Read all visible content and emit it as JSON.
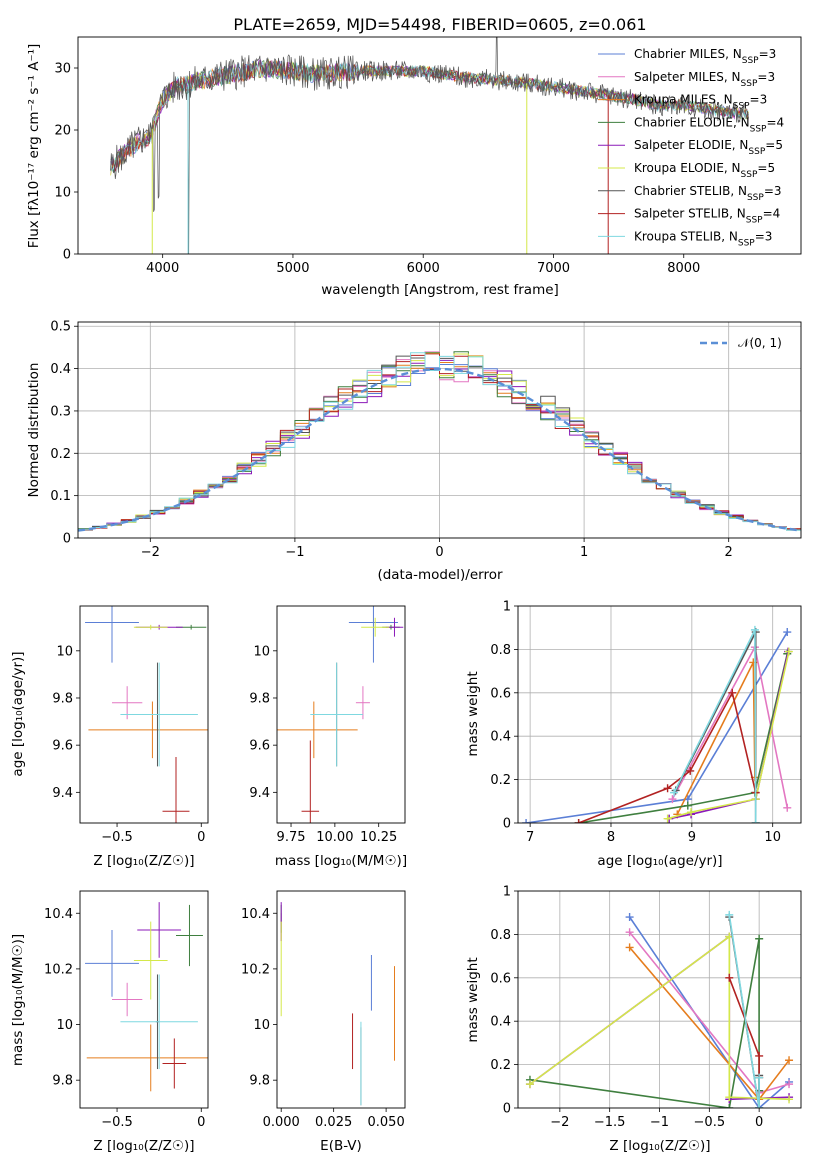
{
  "colors": {
    "Chabrier MILES": "#5b7fd6",
    "Salpeter MILES": "#e377c2",
    "Kroupa MILES": "#e57d1e",
    "Chabrier ELODIE": "#3f7f3f",
    "Salpeter ELODIE": "#8b1ab8",
    "Kroupa ELODIE": "#d4e84a",
    "Chabrier STELIB": "#555555",
    "Salpeter STELIB": "#b22222",
    "Kroupa STELIB": "#7fd8e0",
    "normal": "#5b8fd6"
  },
  "chart_data": [
    {
      "id": "spectrum",
      "type": "line",
      "title": "PLATE=2659, MJD=54498, FIBERID=0605, z=0.061",
      "xlabel": "wavelength [Angstrom, rest frame]",
      "ylabel": "Flux [fλ10⁻¹⁷ erg cm⁻² s⁻¹ A⁻¹]",
      "xlim": [
        3350,
        8900
      ],
      "ylim": [
        0,
        35
      ],
      "xticks": [
        4000,
        5000,
        6000,
        7000,
        8000
      ],
      "yticks": [
        0,
        10,
        20,
        30
      ],
      "legend_position": "top-right",
      "series": [
        {
          "name": "Chabrier MILES, N_SSP=3",
          "base": "Chabrier MILES",
          "nssp": "3"
        },
        {
          "name": "Salpeter MILES, N_SSP=3",
          "base": "Salpeter MILES",
          "nssp": "3"
        },
        {
          "name": "Kroupa MILES, N_SSP=3",
          "base": "Kroupa MILES",
          "nssp": "3"
        },
        {
          "name": "Chabrier ELODIE, N_SSP=4",
          "base": "Chabrier ELODIE",
          "nssp": "4"
        },
        {
          "name": "Salpeter ELODIE, N_SSP=5",
          "base": "Salpeter ELODIE",
          "nssp": "5"
        },
        {
          "name": "Kroupa ELODIE, N_SSP=5",
          "base": "Kroupa ELODIE",
          "nssp": "5"
        },
        {
          "name": "Chabrier STELIB, N_SSP=3",
          "base": "Chabrier STELIB",
          "nssp": "3"
        },
        {
          "name": "Salpeter STELIB, N_SSP=4",
          "base": "Salpeter STELIB",
          "nssp": "4"
        },
        {
          "name": "Kroupa STELIB, N_SSP=3",
          "base": "Kroupa STELIB",
          "nssp": "3"
        }
      ],
      "continuum": [
        [
          3600,
          14
        ],
        [
          3700,
          16
        ],
        [
          3800,
          18
        ],
        [
          3900,
          19
        ],
        [
          4000,
          25
        ],
        [
          4100,
          27
        ],
        [
          4300,
          28
        ],
        [
          4500,
          29
        ],
        [
          4800,
          30
        ],
        [
          5000,
          29.5
        ],
        [
          5200,
          29
        ],
        [
          5500,
          29.5
        ],
        [
          6000,
          29.5
        ],
        [
          6300,
          28.5
        ],
        [
          6600,
          28
        ],
        [
          7000,
          27
        ],
        [
          7300,
          26
        ],
        [
          7600,
          25
        ],
        [
          7800,
          24
        ],
        [
          8000,
          24
        ],
        [
          8300,
          23
        ],
        [
          8500,
          22.5
        ]
      ]
    },
    {
      "id": "residuals",
      "type": "area",
      "xlabel": "(data-model)/error",
      "ylabel": "Normed distribution",
      "xlim": [
        -2.5,
        2.5
      ],
      "ylim": [
        0,
        0.51
      ],
      "xticks": [
        -2,
        -1,
        0,
        1,
        2
      ],
      "yticks": [
        0.0,
        0.1,
        0.2,
        0.3,
        0.4,
        0.5
      ],
      "legend": "𝒩(0, 1)",
      "legend_position": "top-right",
      "bin_width": 0.1,
      "grid": true
    },
    {
      "id": "age-vs-Z",
      "type": "scatter",
      "xlabel": "Z [log₁₀(Z/Z☉)]",
      "ylabel": "age  [log₁₀(age/yr)]",
      "xlim": [
        -0.72,
        0.04
      ],
      "ylim": [
        9.27,
        10.19
      ],
      "xticks": [
        -0.5,
        0.0
      ],
      "yticks": [
        9.4,
        9.6,
        9.8,
        10.0
      ],
      "points": [
        {
          "series": "Chabrier MILES",
          "x": -0.53,
          "xerr": 0.16,
          "y": 10.12,
          "yerr": 0.17
        },
        {
          "series": "Salpeter MILES",
          "x": -0.44,
          "xerr": 0.09,
          "y": 9.78,
          "yerr": 0.07
        },
        {
          "series": "Kroupa MILES",
          "x": -0.29,
          "xerr": 0.38,
          "y": 9.665,
          "yerr": 0.12
        },
        {
          "series": "Chabrier ELODIE",
          "x": -0.06,
          "xerr": 0.09,
          "y": 10.1,
          "yerr": 0.01
        },
        {
          "series": "Salpeter ELODIE",
          "x": -0.25,
          "xerr": 0.14,
          "y": 10.1,
          "yerr": 0.01
        },
        {
          "series": "Kroupa ELODIE",
          "x": -0.3,
          "xerr": 0.1,
          "y": 10.1,
          "yerr": 0.01
        },
        {
          "series": "Chabrier STELIB",
          "x": -0.26,
          "xerr": 0.01,
          "y": 9.73,
          "yerr": 0.22
        },
        {
          "series": "Salpeter STELIB",
          "x": -0.15,
          "xerr": 0.08,
          "y": 9.32,
          "yerr": 0.23
        },
        {
          "series": "Kroupa STELIB",
          "x": -0.25,
          "xerr": 0.23,
          "y": 9.73,
          "yerr": 0.22
        }
      ]
    },
    {
      "id": "age-vs-mass",
      "type": "scatter",
      "xlabel": "mass [log₁₀(M/M☉)]",
      "ylabel": "",
      "xlim": [
        9.67,
        10.4
      ],
      "ylim": [
        9.27,
        10.19
      ],
      "xticks": [
        9.75,
        10.0,
        10.25
      ],
      "xticklabels": [
        "9.75",
        "10.00",
        "10.25"
      ],
      "yticks": [
        9.4,
        9.6,
        9.8,
        10.0
      ],
      "points": [
        {
          "series": "Chabrier MILES",
          "x": 10.22,
          "xerr": 0.14,
          "y": 10.12,
          "yerr": 0.17
        },
        {
          "series": "Salpeter MILES",
          "x": 10.16,
          "xerr": 0.04,
          "y": 9.78,
          "yerr": 0.07
        },
        {
          "series": "Kroupa MILES",
          "x": 9.88,
          "xerr": 0.25,
          "y": 9.665,
          "yerr": 0.12
        },
        {
          "series": "Chabrier ELODIE",
          "x": 10.32,
          "xerr": 0.05,
          "y": 10.1,
          "yerr": 0.01
        },
        {
          "series": "Salpeter ELODIE",
          "x": 10.34,
          "xerr": 0.05,
          "y": 10.1,
          "yerr": 0.04
        },
        {
          "series": "Kroupa ELODIE",
          "x": 10.23,
          "xerr": 0.08,
          "y": 10.1,
          "yerr": 0.04
        },
        {
          "series": "Chabrier STELIB",
          "x": 10.01,
          "xerr": 0.03,
          "y": 9.73,
          "yerr": 0.22
        },
        {
          "series": "Salpeter STELIB",
          "x": 9.86,
          "xerr": 0.05,
          "y": 9.32,
          "yerr": 0.3
        },
        {
          "series": "Kroupa STELIB",
          "x": 10.01,
          "xerr": 0.15,
          "y": 9.73,
          "yerr": 0.22
        }
      ]
    },
    {
      "id": "mass-weight-vs-age",
      "type": "line",
      "xlabel": "age  [log₁₀(age/yr)]",
      "ylabel": "mass weight",
      "xlim": [
        6.85,
        10.35
      ],
      "ylim": [
        0,
        1.0
      ],
      "xticks": [
        7,
        8,
        9,
        10
      ],
      "yticks": [
        0.0,
        0.2,
        0.4,
        0.6,
        0.8,
        1.0
      ],
      "grid": true,
      "series": [
        {
          "name": "Chabrier MILES",
          "points": [
            [
              6.95,
              0.0
            ],
            [
              8.95,
              0.11
            ],
            [
              10.18,
              0.88
            ]
          ]
        },
        {
          "name": "Salpeter MILES",
          "points": [
            [
              8.76,
              0.11
            ],
            [
              9.78,
              0.81
            ],
            [
              10.18,
              0.07
            ]
          ]
        },
        {
          "name": "Kroupa MILES",
          "points": [
            [
              8.82,
              0.04
            ],
            [
              9.76,
              0.74
            ],
            [
              9.78,
              0.21
            ]
          ]
        },
        {
          "name": "Chabrier ELODIE",
          "points": [
            [
              7.6,
              0.0
            ],
            [
              8.95,
              0.08
            ],
            [
              9.78,
              0.14
            ],
            [
              10.18,
              0.78
            ]
          ]
        },
        {
          "name": "Salpeter ELODIE",
          "points": [
            [
              8.72,
              0.02
            ],
            [
              8.99,
              0.04
            ],
            [
              9.79,
              0.11
            ],
            [
              10.19,
              0.79
            ]
          ]
        },
        {
          "name": "Kroupa ELODIE",
          "points": [
            [
              8.7,
              0.02
            ],
            [
              8.99,
              0.05
            ],
            [
              9.79,
              0.11
            ],
            [
              10.2,
              0.79
            ]
          ]
        },
        {
          "name": "Chabrier STELIB",
          "points": [
            [
              8.8,
              0.15
            ],
            [
              9.79,
              0.88
            ],
            [
              9.79,
              0.0
            ]
          ]
        },
        {
          "name": "Salpeter STELIB",
          "points": [
            [
              7.6,
              0.0
            ],
            [
              8.7,
              0.16
            ],
            [
              8.98,
              0.24
            ],
            [
              9.5,
              0.6
            ],
            [
              9.79,
              0.14
            ]
          ]
        },
        {
          "name": "Kroupa STELIB",
          "points": [
            [
              8.78,
              0.14
            ],
            [
              9.78,
              0.89
            ],
            [
              9.79,
              0.0
            ]
          ]
        }
      ]
    },
    {
      "id": "mass-vs-Z",
      "type": "scatter",
      "xlabel": "Z [log₁₀(Z/Z☉)]",
      "ylabel": "mass [log₁₀(M/M☉)]",
      "xlim": [
        -0.72,
        0.04
      ],
      "ylim": [
        9.7,
        10.48
      ],
      "xticks": [
        -0.5,
        0.0
      ],
      "yticks": [
        9.8,
        10.0,
        10.2,
        10.4
      ],
      "points": [
        {
          "series": "Chabrier MILES",
          "x": -0.53,
          "xerr": 0.16,
          "y": 10.22,
          "yerr": 0.12
        },
        {
          "series": "Salpeter MILES",
          "x": -0.44,
          "xerr": 0.09,
          "y": 10.09,
          "yerr": 0.06
        },
        {
          "series": "Kroupa MILES",
          "x": -0.3,
          "xerr": 0.38,
          "y": 9.88,
          "yerr": 0.12
        },
        {
          "series": "Chabrier ELODIE",
          "x": -0.07,
          "xerr": 0.08,
          "y": 10.32,
          "yerr": 0.11
        },
        {
          "series": "Salpeter ELODIE",
          "x": -0.25,
          "xerr": 0.13,
          "y": 10.34,
          "yerr": 0.1
        },
        {
          "series": "Kroupa ELODIE",
          "x": -0.3,
          "xerr": 0.1,
          "y": 10.23,
          "yerr": 0.14
        },
        {
          "series": "Chabrier STELIB",
          "x": -0.26,
          "xerr": 0.01,
          "y": 10.01,
          "yerr": 0.17
        },
        {
          "series": "Salpeter STELIB",
          "x": -0.16,
          "xerr": 0.07,
          "y": 9.86,
          "yerr": 0.09
        },
        {
          "series": "Kroupa STELIB",
          "x": -0.25,
          "xerr": 0.23,
          "y": 10.01,
          "yerr": 0.17
        }
      ]
    },
    {
      "id": "mass-vs-ebv",
      "type": "scatter",
      "xlabel": "E(B-V)",
      "ylabel": "",
      "xlim": [
        -0.002,
        0.059
      ],
      "ylim": [
        9.7,
        10.48
      ],
      "xticks": [
        0.0,
        0.025,
        0.05
      ],
      "xticklabels": [
        "0.000",
        "0.025",
        "0.050"
      ],
      "yticks": [
        9.8,
        10.0,
        10.2,
        10.4
      ],
      "points": [
        {
          "series": "Chabrier MILES",
          "x": 0.043,
          "y": 10.15,
          "yerr": 0.1
        },
        {
          "series": "Salpeter MILES",
          "x": 0.0,
          "y": 10.35,
          "yerr": 0.05
        },
        {
          "series": "Kroupa MILES",
          "x": 0.054,
          "y": 10.04,
          "yerr": 0.17
        },
        {
          "series": "Chabrier ELODIE",
          "x": 0.0,
          "y": 10.38,
          "yerr": 0.05
        },
        {
          "series": "Salpeter ELODIE",
          "x": 0.0,
          "y": 10.37,
          "yerr": 0.07
        },
        {
          "series": "Kroupa ELODIE",
          "x": 0.0,
          "y": 10.2,
          "yerr": 0.17
        },
        {
          "series": "Chabrier STELIB",
          "x": 0.038,
          "y": 9.85,
          "yerr": 0.14
        },
        {
          "series": "Salpeter STELIB",
          "x": 0.034,
          "y": 9.94,
          "yerr": 0.1
        },
        {
          "series": "Kroupa STELIB",
          "x": 0.038,
          "y": 9.86,
          "yerr": 0.15
        }
      ]
    },
    {
      "id": "mass-weight-vs-Z",
      "type": "line",
      "xlabel": "Z [log₁₀(Z/Z☉)]",
      "ylabel": "mass weight",
      "xlim": [
        -2.42,
        0.42
      ],
      "ylim": [
        0,
        1.0
      ],
      "xticks": [
        -2.0,
        -1.5,
        -1.0,
        -0.5,
        0.0
      ],
      "yticks": [
        0.0,
        0.2,
        0.4,
        0.6,
        0.8,
        1.0
      ],
      "grid": true,
      "series": [
        {
          "name": "Chabrier MILES",
          "points": [
            [
              -1.3,
              0.88
            ],
            [
              0.0,
              0.0
            ],
            [
              0.3,
              0.12
            ]
          ]
        },
        {
          "name": "Salpeter MILES",
          "points": [
            [
              -1.3,
              0.81
            ],
            [
              0.0,
              0.07
            ],
            [
              0.3,
              0.11
            ]
          ]
        },
        {
          "name": "Kroupa MILES",
          "points": [
            [
              -1.3,
              0.74
            ],
            [
              0.0,
              0.04
            ],
            [
              0.3,
              0.22
            ]
          ]
        },
        {
          "name": "Chabrier ELODIE",
          "points": [
            [
              -2.3,
              0.13
            ],
            [
              -0.3,
              0.0
            ],
            [
              0.0,
              0.78
            ],
            [
              0.0,
              0.08
            ]
          ]
        },
        {
          "name": "Salpeter ELODIE",
          "points": [
            [
              -2.3,
              0.11
            ],
            [
              -0.3,
              0.79
            ],
            [
              -0.3,
              0.04
            ],
            [
              0.3,
              0.05
            ]
          ]
        },
        {
          "name": "Kroupa ELODIE",
          "points": [
            [
              -2.3,
              0.11
            ],
            [
              -0.3,
              0.79
            ],
            [
              -0.3,
              0.05
            ],
            [
              0.3,
              0.04
            ]
          ]
        },
        {
          "name": "Chabrier STELIB",
          "points": [
            [
              -0.3,
              0.88
            ],
            [
              0.0,
              0.0
            ],
            [
              0.0,
              0.15
            ]
          ]
        },
        {
          "name": "Salpeter STELIB",
          "points": [
            [
              -0.3,
              0.6
            ],
            [
              0.0,
              0.24
            ],
            [
              0.0,
              0.14
            ]
          ]
        },
        {
          "name": "Kroupa STELIB",
          "points": [
            [
              -0.3,
              0.89
            ],
            [
              0.0,
              0.0
            ],
            [
              0.0,
              0.14
            ]
          ]
        }
      ]
    }
  ]
}
